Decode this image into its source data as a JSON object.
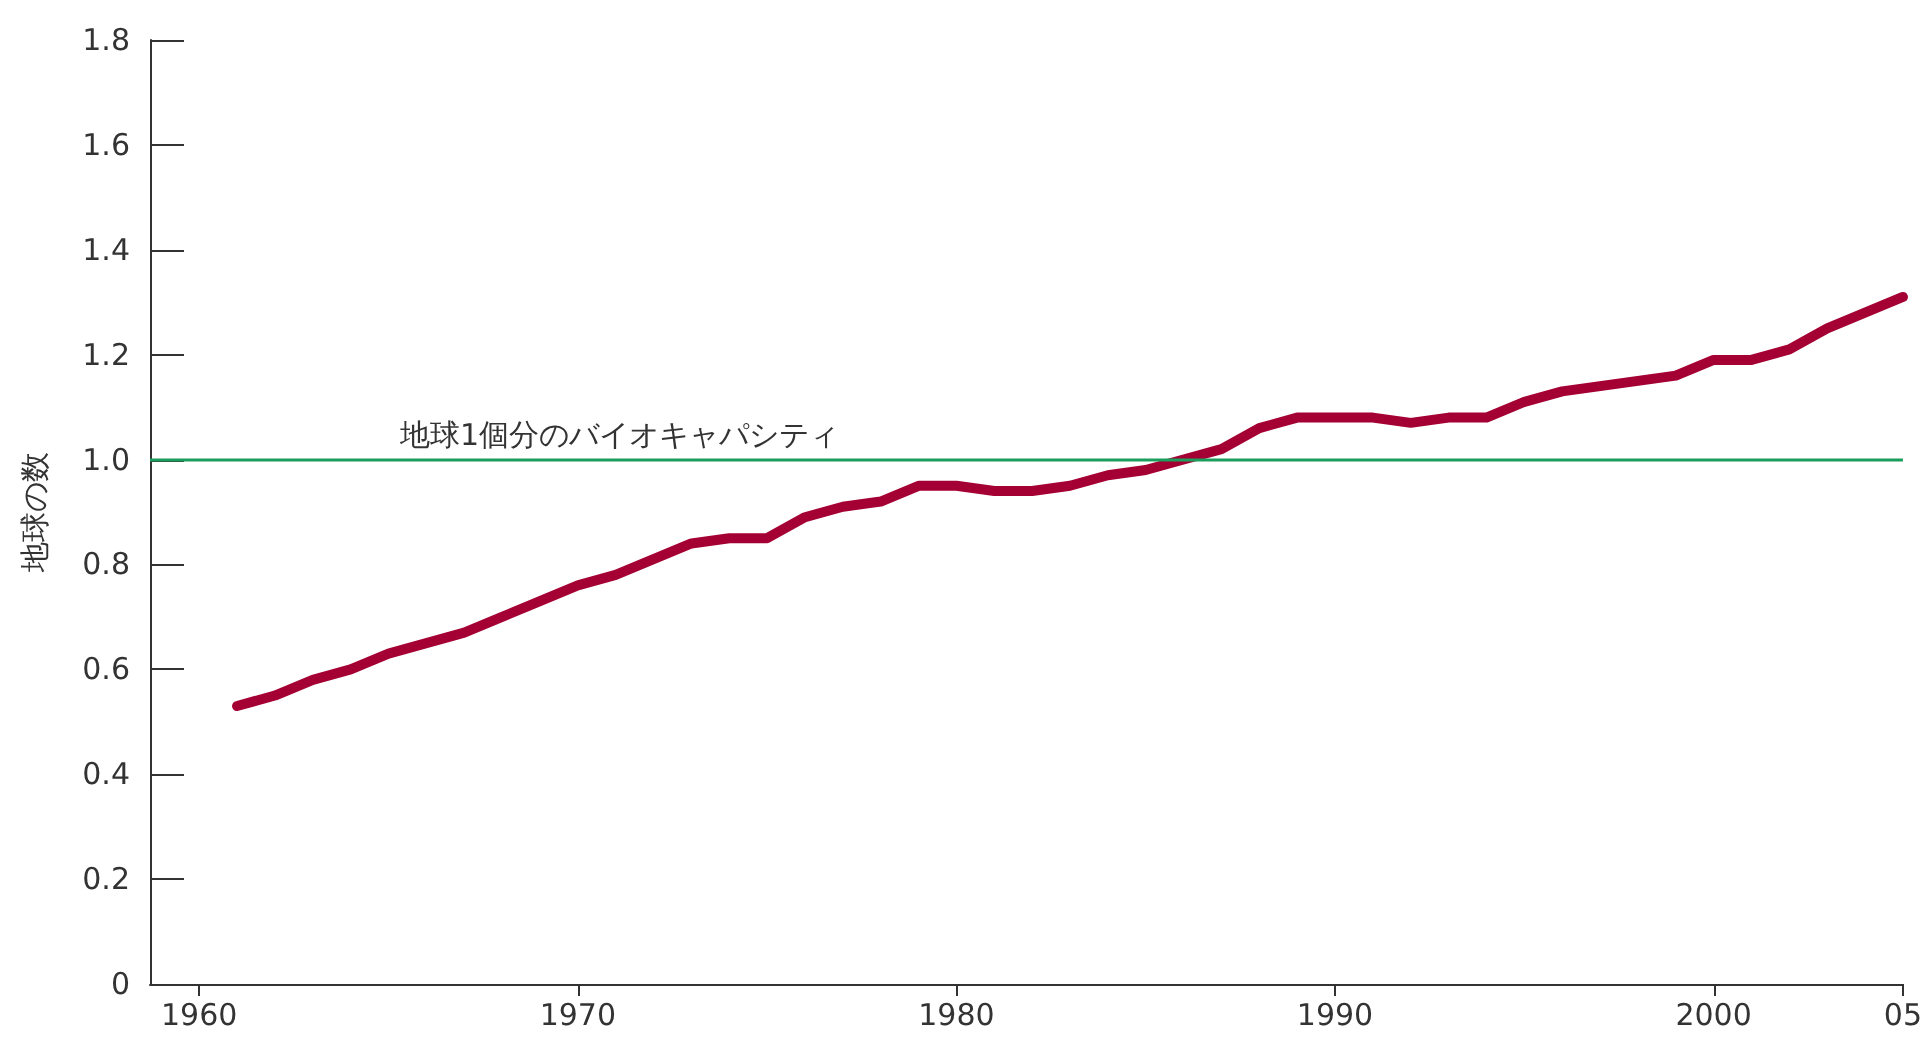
{
  "chart_data": {
    "type": "line",
    "ylabel": "地球の数",
    "x": [
      1961,
      1962,
      1963,
      1964,
      1965,
      1966,
      1967,
      1968,
      1969,
      1970,
      1971,
      1972,
      1973,
      1974,
      1975,
      1976,
      1977,
      1978,
      1979,
      1980,
      1981,
      1982,
      1983,
      1984,
      1985,
      1986,
      1987,
      1988,
      1989,
      1990,
      1991,
      1992,
      1993,
      1994,
      1995,
      1996,
      1997,
      1998,
      1999,
      2000,
      2001,
      2002,
      2003,
      2004,
      2005
    ],
    "series": [
      {
        "color": "#a50034",
        "values": [
          0.53,
          0.55,
          0.58,
          0.6,
          0.63,
          0.65,
          0.67,
          0.7,
          0.73,
          0.76,
          0.78,
          0.81,
          0.84,
          0.85,
          0.85,
          0.89,
          0.91,
          0.92,
          0.95,
          0.95,
          0.94,
          0.94,
          0.95,
          0.97,
          0.98,
          1.0,
          1.02,
          1.06,
          1.08,
          1.08,
          1.08,
          1.07,
          1.08,
          1.08,
          1.11,
          1.13,
          1.14,
          1.15,
          1.16,
          1.19,
          1.19,
          1.21,
          1.25,
          1.28,
          1.31
        ]
      }
    ],
    "xlim": [
      1958.7,
      2005
    ],
    "xticks": [
      1960,
      1970,
      1980,
      1990,
      2000,
      {
        "value": 2005,
        "label": "05"
      }
    ],
    "ylim": [
      0,
      1.8
    ],
    "yticks": [
      0,
      0.2,
      0.4,
      0.6,
      0.8,
      {
        "value": 1,
        "label": "1.0"
      },
      1.2,
      1.4,
      1.6,
      1.8
    ],
    "ref_lines": [
      {
        "axis": "y",
        "value": 1.0,
        "label": "地球1個分のバイオキャパシティ",
        "color": "#1a9e5c"
      }
    ],
    "grid": false,
    "marker": "none",
    "line_style": "solid"
  }
}
